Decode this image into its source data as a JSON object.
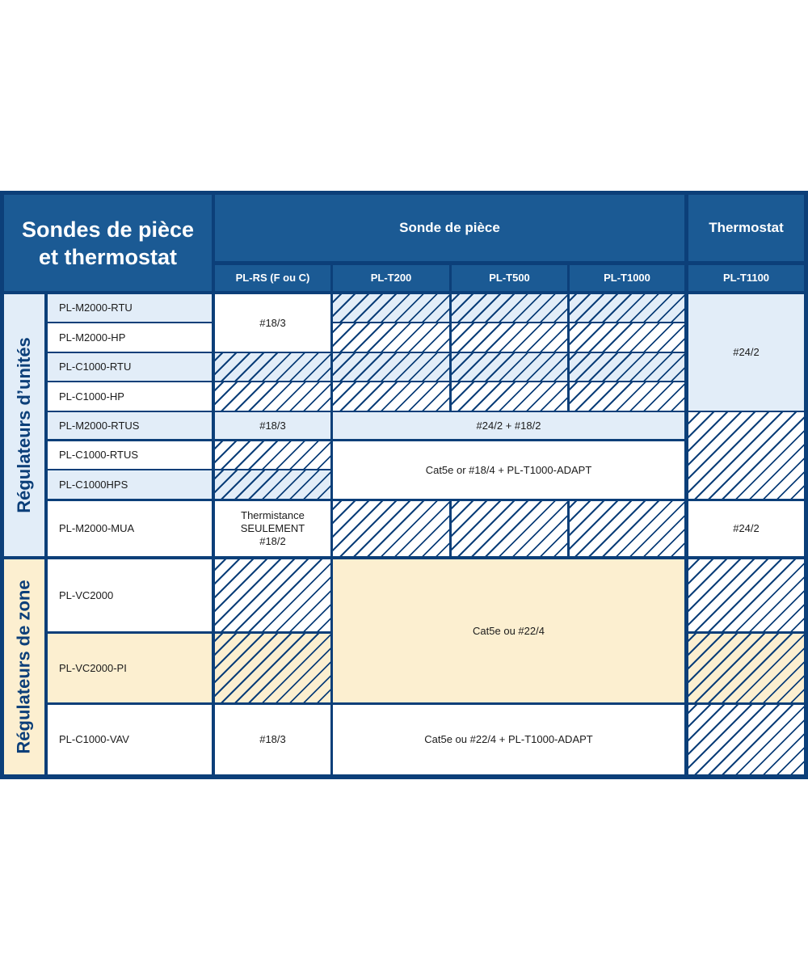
{
  "title": "Sondes de pièce et thermostat",
  "title_line1": "Sondes de pièce",
  "title_line2": "et thermostat",
  "groups": {
    "room_sensor": "Sonde de pièce",
    "thermostat": "Thermostat"
  },
  "columns": [
    "PL-RS (F ou C)",
    "PL-T200",
    "PL-T500",
    "PL-T1000",
    "PL-T1100"
  ],
  "sections": {
    "unit": "Régulateurs d’unités",
    "zone": "Régulateurs de zone"
  },
  "rows": [
    "PL-M2000-RTU",
    "PL-M2000-HP",
    "PL-C1000-RTU",
    "PL-C1000-HP",
    "PL-M2000-RTUS",
    "PL-C1000-RTUS",
    "PL-C1000HPS",
    "PL-M2000-MUA",
    "PL-VC2000",
    "PL-VC2000-PI",
    "PL-C1000-VAV"
  ],
  "cells": {
    "rs_m2000": "#18/3",
    "t1100_top": "#24/2",
    "rs_rtus": "#18/3",
    "rtus_t": "#24/2 + #18/2",
    "crtus_t": "Cat5e or #18/4 + PL-T1000-ADAPT",
    "mua_rs": "Thermistance SEULEMENT #18/2",
    "mua_t1100": "#24/2",
    "zone_t": "Cat5e ou #22/4",
    "vav_rs": "#18/3",
    "vav_t": "Cat5e ou #22/4 + PL-T1000-ADAPT"
  },
  "legend_meaning": {
    "hatched": "not compatible"
  },
  "colors": {
    "border": "#0c3f79",
    "header": "#1b5a94",
    "light_blue": "#e2edf8",
    "cream": "#fcefd0"
  }
}
